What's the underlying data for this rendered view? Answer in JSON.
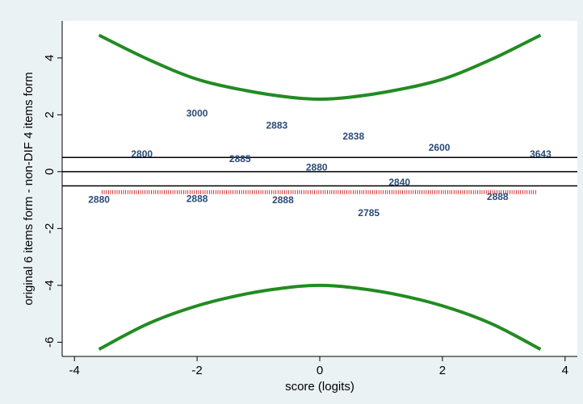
{
  "chart_data": {
    "type": "scatter",
    "xlabel": "score (logits)",
    "ylabel": "original 6 items form - non-DIF 4 items form",
    "xlim": [
      -4.2,
      4.2
    ],
    "ylim": [
      -6.5,
      5.3
    ],
    "xticks": [
      "-4",
      "-2",
      "0",
      "2",
      "4"
    ],
    "yticks": [
      "-6",
      "-4",
      "-2",
      "0",
      "2",
      "4"
    ],
    "xtick_values": [
      -4,
      -2,
      0,
      2,
      4
    ],
    "ytick_values": [
      -6,
      -4,
      -2,
      0,
      2,
      4
    ],
    "grid": false,
    "colors": {
      "background": "#eaf2f3",
      "plot_area": "#ffffff",
      "bounds_curve": "#228b22",
      "reference_lines": "#000000",
      "points": "#2b4a78",
      "rug": "#cc0000"
    },
    "reference_lines_y": [
      -0.5,
      0,
      0.5
    ],
    "upper_bound_curve": {
      "x": [
        -3.6,
        -2.8,
        -2.0,
        -1.2,
        -0.5,
        0,
        0.5,
        1.2,
        2.0,
        2.8,
        3.6
      ],
      "y": [
        4.8,
        3.95,
        3.25,
        2.85,
        2.62,
        2.55,
        2.62,
        2.85,
        3.25,
        3.95,
        4.8
      ]
    },
    "lower_bound_curve": {
      "x": [
        -3.6,
        -2.8,
        -2.0,
        -1.2,
        -0.5,
        0,
        0.5,
        1.2,
        2.0,
        2.8,
        3.6
      ],
      "y": [
        -6.25,
        -5.35,
        -4.72,
        -4.3,
        -4.07,
        -4.0,
        -4.07,
        -4.3,
        -4.72,
        -5.35,
        -6.25
      ]
    },
    "points": [
      {
        "label": "3000",
        "x": -2.0,
        "y": 2.05
      },
      {
        "label": "2883",
        "x": -0.7,
        "y": 1.62
      },
      {
        "label": "2838",
        "x": 0.55,
        "y": 1.25
      },
      {
        "label": "2600",
        "x": 1.95,
        "y": 0.85
      },
      {
        "label": "2800",
        "x": -2.9,
        "y": 0.62
      },
      {
        "label": "2885",
        "x": -1.3,
        "y": 0.45
      },
      {
        "label": "3643",
        "x": 3.6,
        "y": 0.62
      },
      {
        "label": "2880",
        "x": -0.05,
        "y": 0.15
      },
      {
        "label": "2840",
        "x": 1.3,
        "y": -0.38
      },
      {
        "label": "2880",
        "x": -3.6,
        "y": -0.98
      },
      {
        "label": "2888",
        "x": -2.0,
        "y": -0.95
      },
      {
        "label": "2888",
        "x": -0.6,
        "y": -1.0
      },
      {
        "label": "2888",
        "x": 2.9,
        "y": -0.88
      },
      {
        "label": "2785",
        "x": 0.8,
        "y": -1.45
      }
    ],
    "rug": {
      "y": -0.72,
      "x_start": -3.55,
      "x_end": 3.55,
      "step": 0.035
    }
  }
}
